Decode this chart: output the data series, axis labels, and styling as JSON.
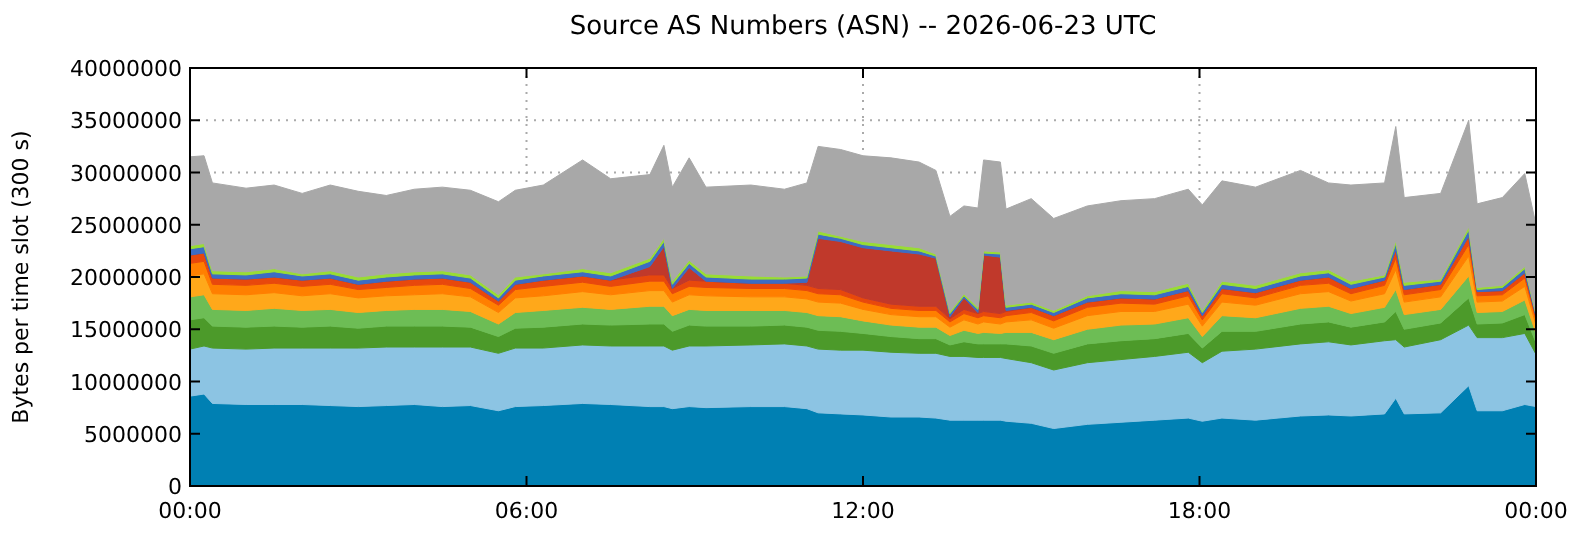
{
  "chart_data": {
    "type": "area",
    "stacked": true,
    "title": "Source AS Numbers (ASN) -- 2026-06-23 UTC",
    "ylabel": "Bytes per time slot (300 s)",
    "x": [
      0,
      0.25,
      0.4,
      1,
      1.5,
      2,
      2.5,
      3,
      3.5,
      4,
      4.5,
      5,
      5.5,
      5.8,
      6.3,
      7,
      7.5,
      8.2,
      8.45,
      8.6,
      8.9,
      9.2,
      10,
      10.6,
      11,
      11.2,
      11.6,
      12,
      12.5,
      13,
      13.3,
      13.55,
      13.8,
      14.05,
      14.15,
      14.45,
      14.55,
      15,
      15.4,
      16,
      16.6,
      17.2,
      17.8,
      18.05,
      18.4,
      19,
      19.8,
      20.3,
      20.7,
      21.3,
      21.5,
      21.65,
      22.3,
      22.8,
      22.95,
      23.4,
      23.8,
      24
    ],
    "xlim": [
      0,
      24
    ],
    "xticks": [
      {
        "value": 0,
        "label": "00:00"
      },
      {
        "value": 6,
        "label": "06:00"
      },
      {
        "value": 12,
        "label": "12:00"
      },
      {
        "value": 18,
        "label": "18:00"
      },
      {
        "value": 24,
        "label": "00:00"
      }
    ],
    "ylim": [
      0,
      40000000
    ],
    "yticks": [
      0,
      5000000,
      10000000,
      15000000,
      20000000,
      25000000,
      30000000,
      35000000,
      40000000
    ],
    "grid": true,
    "line_style": "dotted",
    "series": [
      {
        "color": "#0080b3",
        "values": [
          8600000,
          8800000,
          7900000,
          7800000,
          7800000,
          7800000,
          7700000,
          7600000,
          7700000,
          7800000,
          7600000,
          7700000,
          7200000,
          7600000,
          7700000,
          7900000,
          7800000,
          7600000,
          7600000,
          7400000,
          7600000,
          7500000,
          7600000,
          7600000,
          7400000,
          7000000,
          6900000,
          6800000,
          6600000,
          6600000,
          6500000,
          6300000,
          6300000,
          6300000,
          6300000,
          6300000,
          6200000,
          6000000,
          5500000,
          5900000,
          6100000,
          6300000,
          6500000,
          6200000,
          6500000,
          6300000,
          6700000,
          6800000,
          6700000,
          6900000,
          8400000,
          6900000,
          7000000,
          9600000,
          7200000,
          7200000,
          7800000,
          7600000
        ]
      },
      {
        "color": "#8cc4e3",
        "values": [
          4500000,
          4600000,
          5300000,
          5300000,
          5400000,
          5400000,
          5500000,
          5600000,
          5600000,
          5500000,
          5700000,
          5600000,
          5500000,
          5600000,
          5500000,
          5600000,
          5600000,
          5800000,
          5800000,
          5600000,
          5800000,
          5900000,
          5900000,
          6000000,
          6000000,
          6100000,
          6100000,
          6200000,
          6200000,
          6100000,
          6200000,
          6100000,
          6100000,
          6000000,
          6000000,
          6000000,
          6000000,
          5800000,
          5600000,
          5900000,
          6000000,
          6100000,
          6300000,
          5600000,
          6400000,
          6800000,
          6900000,
          7000000,
          6800000,
          7000000,
          5600000,
          6400000,
          7000000,
          5800000,
          7000000,
          7000000,
          6800000,
          5000000
        ]
      },
      {
        "color": "#4c9a2a",
        "values": [
          2800000,
          2700000,
          2100000,
          2100000,
          2100000,
          2000000,
          2100000,
          1900000,
          2000000,
          2000000,
          2000000,
          1900000,
          1600000,
          1900000,
          2000000,
          2000000,
          2000000,
          2100000,
          2100000,
          1800000,
          2000000,
          1900000,
          1800000,
          1800000,
          1800000,
          1800000,
          1800000,
          1600000,
          1500000,
          1400000,
          1400000,
          1100000,
          1400000,
          1300000,
          1300000,
          1300000,
          1400000,
          1600000,
          1600000,
          1800000,
          1800000,
          1700000,
          1800000,
          1400000,
          1900000,
          1700000,
          1900000,
          1900000,
          1700000,
          1800000,
          2700000,
          1700000,
          1600000,
          2600000,
          1300000,
          1400000,
          1800000,
          1100000
        ]
      },
      {
        "color": "#6dbd55",
        "values": [
          2200000,
          2200000,
          1600000,
          1600000,
          1700000,
          1600000,
          1600000,
          1500000,
          1500000,
          1600000,
          1600000,
          1500000,
          1200000,
          1500000,
          1600000,
          1600000,
          1500000,
          1700000,
          1700000,
          1500000,
          1500000,
          1500000,
          1500000,
          1400000,
          1400000,
          1400000,
          1400000,
          1200000,
          1100000,
          1100000,
          1100000,
          900000,
          1100000,
          1000000,
          1100000,
          1000000,
          1100000,
          1300000,
          1300000,
          1400000,
          1500000,
          1400000,
          1500000,
          1100000,
          1500000,
          1300000,
          1500000,
          1500000,
          1300000,
          1400000,
          2100000,
          1400000,
          1300000,
          2100000,
          1100000,
          1100000,
          1400000,
          900000
        ]
      },
      {
        "color": "#ffa81a",
        "values": [
          2000000,
          2000000,
          1500000,
          1500000,
          1500000,
          1400000,
          1500000,
          1400000,
          1400000,
          1400000,
          1500000,
          1400000,
          1100000,
          1400000,
          1400000,
          1500000,
          1400000,
          1500000,
          1500000,
          1300000,
          1400000,
          1400000,
          1300000,
          1300000,
          1300000,
          1300000,
          1300000,
          1100000,
          1000000,
          1000000,
          1000000,
          800000,
          1000000,
          900000,
          1000000,
          900000,
          1000000,
          1200000,
          1100000,
          1300000,
          1300000,
          1200000,
          1300000,
          1000000,
          1300000,
          1200000,
          1400000,
          1400000,
          1200000,
          1300000,
          1900000,
          1200000,
          1200000,
          1900000,
          1000000,
          1000000,
          1300000,
          800000
        ]
      },
      {
        "color": "#ff7f00",
        "values": [
          1200000,
          1200000,
          900000,
          900000,
          900000,
          900000,
          900000,
          800000,
          800000,
          900000,
          900000,
          800000,
          700000,
          800000,
          900000,
          900000,
          800000,
          900000,
          900000,
          800000,
          800000,
          800000,
          800000,
          800000,
          800000,
          800000,
          800000,
          700000,
          600000,
          600000,
          600000,
          500000,
          600000,
          600000,
          600000,
          600000,
          600000,
          700000,
          700000,
          800000,
          800000,
          700000,
          800000,
          600000,
          800000,
          700000,
          800000,
          800000,
          700000,
          800000,
          1100000,
          700000,
          700000,
          1100000,
          600000,
          600000,
          800000,
          500000
        ]
      },
      {
        "color": "#e8480c",
        "values": [
          800000,
          800000,
          600000,
          600000,
          600000,
          600000,
          600000,
          500000,
          600000,
          600000,
          600000,
          600000,
          400000,
          500000,
          600000,
          600000,
          600000,
          600000,
          600000,
          500000,
          600000,
          600000,
          500000,
          500000,
          500000,
          500000,
          500000,
          400000,
          400000,
          400000,
          400000,
          300000,
          400000,
          400000,
          400000,
          400000,
          400000,
          500000,
          500000,
          500000,
          500000,
          500000,
          500000,
          400000,
          500000,
          500000,
          500000,
          600000,
          500000,
          500000,
          800000,
          500000,
          500000,
          800000,
          400000,
          400000,
          500000,
          300000
        ]
      },
      {
        "color": "#c0392b",
        "values": [
          0,
          0,
          0,
          0,
          0,
          0,
          0,
          0,
          0,
          0,
          0,
          0,
          0,
          0,
          0,
          0,
          0,
          800000,
          2700000,
          0,
          1200000,
          0,
          0,
          0,
          300000,
          4800000,
          4600000,
          4800000,
          5100000,
          5000000,
          4600000,
          200000,
          1100000,
          100000,
          5400000,
          5400000,
          100000,
          0,
          0,
          0,
          0,
          0,
          0,
          0,
          0,
          0,
          0,
          0,
          0,
          0,
          0,
          0,
          0,
          0,
          0,
          0,
          0,
          0
        ]
      },
      {
        "color": "#3c6cc4",
        "values": [
          600000,
          600000,
          400000,
          400000,
          500000,
          400000,
          400000,
          400000,
          400000,
          400000,
          400000,
          400000,
          300000,
          400000,
          400000,
          400000,
          400000,
          500000,
          500000,
          400000,
          400000,
          400000,
          400000,
          400000,
          400000,
          400000,
          300000,
          300000,
          300000,
          300000,
          200000,
          300000,
          200000,
          300000,
          200000,
          300000,
          300000,
          300000,
          300000,
          400000,
          400000,
          400000,
          400000,
          300000,
          400000,
          400000,
          400000,
          400000,
          400000,
          300000,
          600000,
          400000,
          300000,
          600000,
          200000,
          300000,
          400000,
          200000
        ]
      },
      {
        "color": "#99dd33",
        "values": [
          300000,
          300000,
          300000,
          300000,
          300000,
          200000,
          300000,
          300000,
          300000,
          300000,
          300000,
          300000,
          300000,
          300000,
          200000,
          300000,
          300000,
          300000,
          300000,
          300000,
          300000,
          300000,
          300000,
          200000,
          200000,
          300000,
          200000,
          300000,
          300000,
          300000,
          200000,
          200000,
          200000,
          200000,
          200000,
          200000,
          200000,
          200000,
          200000,
          200000,
          300000,
          300000,
          300000,
          200000,
          300000,
          300000,
          300000,
          300000,
          300000,
          200000,
          300000,
          300000,
          200000,
          300000,
          200000,
          200000,
          200000,
          100000
        ]
      },
      {
        "color": "#a8a8a8",
        "values": [
          8500000,
          8400000,
          8400000,
          8000000,
          8000000,
          7700000,
          8200000,
          8200000,
          7500000,
          7900000,
          8000000,
          8100000,
          8900000,
          8300000,
          8500000,
          10400000,
          9000000,
          8000000,
          8900000,
          9000000,
          9800000,
          8300000,
          8700000,
          8400000,
          8900000,
          8100000,
          8300000,
          8200000,
          8300000,
          8200000,
          8000000,
          9100000,
          8400000,
          9500000,
          8700000,
          8600000,
          9200000,
          9900000,
          8800000,
          8600000,
          8600000,
          8900000,
          9000000,
          10100000,
          9600000,
          9400000,
          9800000,
          8300000,
          9200000,
          8800000,
          10900000,
          8100000,
          8200000,
          10200000,
          8000000,
          8400000,
          8900000,
          8500000
        ]
      }
    ]
  }
}
